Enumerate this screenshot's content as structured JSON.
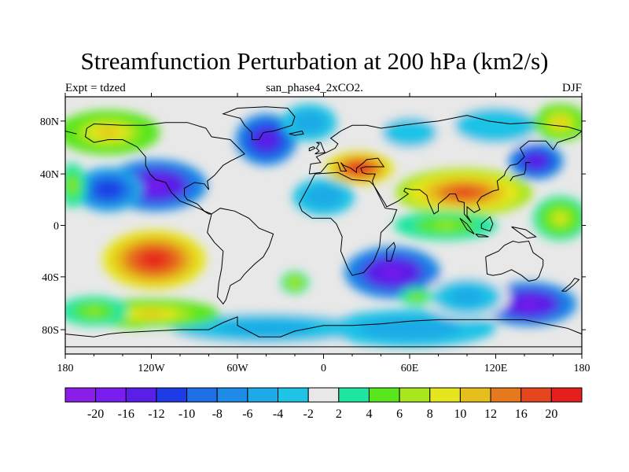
{
  "title": "Streamfunction Perturbation at 200 hPa (km2/s)",
  "left_label": "Expt = tdzed",
  "center_label": "san_phase4_2xCO2.",
  "right_label": "DJF",
  "x_ticks": [
    "180",
    "120W",
    "60W",
    "0",
    "60E",
    "120E",
    "180"
  ],
  "y_ticks": [
    "80N",
    "40N",
    "0",
    "40S",
    "80S"
  ],
  "colorbar": {
    "colors": [
      "#8a1ee6",
      "#7a1ef0",
      "#5a1ee6",
      "#1e3ce6",
      "#1e6ee6",
      "#1e8ce6",
      "#1eaae6",
      "#1ec3e6",
      "#e8e8e8",
      "#1ee6a0",
      "#5ae61e",
      "#a8e61e",
      "#e6e61e",
      "#e6be1e",
      "#e6781e",
      "#e6461e",
      "#e61e1e"
    ],
    "labels": [
      "-20",
      "-16",
      "-12",
      "-10",
      "-8",
      "-6",
      "-4",
      "-2",
      "2",
      "4",
      "6",
      "8",
      "10",
      "12",
      "16",
      "20"
    ]
  },
  "field_blobs": [
    {
      "lon": -117,
      "lat": 28,
      "rx": 30,
      "ry": 14,
      "v": -18
    },
    {
      "lon": -150,
      "lat": 25,
      "rx": 20,
      "ry": 12,
      "v": -12
    },
    {
      "lon": -40,
      "lat": 60,
      "rx": 18,
      "ry": 14,
      "v": -16
    },
    {
      "lon": -10,
      "lat": 72,
      "rx": 16,
      "ry": 10,
      "v": -6
    },
    {
      "lon": 48,
      "lat": -33,
      "rx": 28,
      "ry": 14,
      "v": -18
    },
    {
      "lon": 143,
      "lat": -55,
      "rx": 28,
      "ry": 12,
      "v": -18
    },
    {
      "lon": 148,
      "lat": 45,
      "rx": 16,
      "ry": 10,
      "v": -16
    },
    {
      "lon": 0,
      "lat": 20,
      "rx": 18,
      "ry": 10,
      "v": -6
    },
    {
      "lon": -40,
      "lat": -72,
      "rx": 70,
      "ry": 10,
      "v": -5
    },
    {
      "lon": 60,
      "lat": -72,
      "rx": 50,
      "ry": 10,
      "v": -6
    },
    {
      "lon": 100,
      "lat": -50,
      "rx": 25,
      "ry": 12,
      "v": -5
    },
    {
      "lon": 120,
      "lat": 70,
      "rx": 30,
      "ry": 12,
      "v": -4
    },
    {
      "lon": 60,
      "lat": 65,
      "rx": 20,
      "ry": 10,
      "v": -4
    },
    {
      "lon": -118,
      "lat": -24,
      "rx": 30,
      "ry": 16,
      "v": 20
    },
    {
      "lon": 98,
      "lat": 23,
      "rx": 40,
      "ry": 13,
      "v": 16
    },
    {
      "lon": 25,
      "lat": 40,
      "rx": 20,
      "ry": 9,
      "v": 20
    },
    {
      "lon": -150,
      "lat": 65,
      "rx": 30,
      "ry": 12,
      "v": 10
    },
    {
      "lon": 165,
      "lat": 72,
      "rx": 16,
      "ry": 10,
      "v": 10
    },
    {
      "lon": -120,
      "lat": -62,
      "rx": 40,
      "ry": 8,
      "v": 10
    },
    {
      "lon": -160,
      "lat": -60,
      "rx": 20,
      "ry": 8,
      "v": 6
    },
    {
      "lon": 165,
      "lat": 5,
      "rx": 16,
      "ry": 12,
      "v": 8
    },
    {
      "lon": -175,
      "lat": 28,
      "rx": 8,
      "ry": 12,
      "v": 6
    },
    {
      "lon": -20,
      "lat": -40,
      "rx": 8,
      "ry": 6,
      "v": 8
    },
    {
      "lon": 65,
      "lat": -50,
      "rx": 10,
      "ry": 5,
      "v": 6
    },
    {
      "lon": 85,
      "lat": 0,
      "rx": 30,
      "ry": 8,
      "v": 6
    }
  ]
}
